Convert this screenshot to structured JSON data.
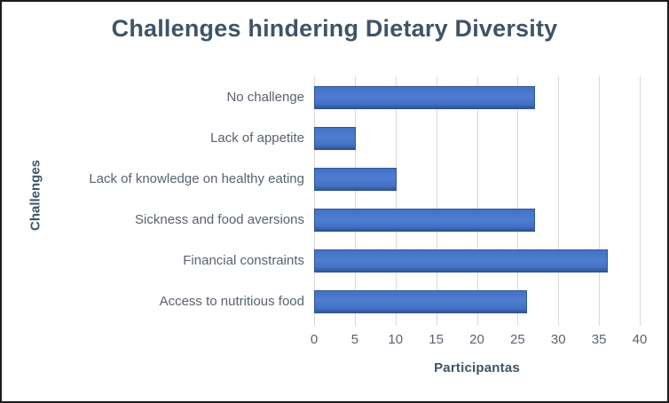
{
  "window": {
    "background": "#ffffff",
    "border_color": "#1c1c1c"
  },
  "chart_data": {
    "type": "bar",
    "orientation": "horizontal",
    "title": "Challenges hindering Dietary Diversity",
    "xlabel": "Participantas",
    "ylabel": "Challenges",
    "categories": [
      "No challenge",
      "Lack of appetite",
      "Lack of knowledge on healthy eating",
      "Sickness and food aversions",
      "Financial constraints",
      "Access to nutritious food"
    ],
    "values": [
      27,
      5,
      10,
      27,
      36,
      26
    ],
    "xlim": [
      0,
      40
    ],
    "xticks": [
      0,
      5,
      10,
      15,
      20,
      25,
      30,
      35,
      40
    ],
    "grid": true,
    "legend": false,
    "colors": {
      "bar_fill": "#4472c4",
      "bar_fill_light": "#4e7dd1",
      "bar_edge": "#2f5597",
      "gridline": "#d9d9d9",
      "title_text": "#3f5468",
      "axis_title_text": "#3f5468",
      "tick_text": "#596270"
    }
  }
}
